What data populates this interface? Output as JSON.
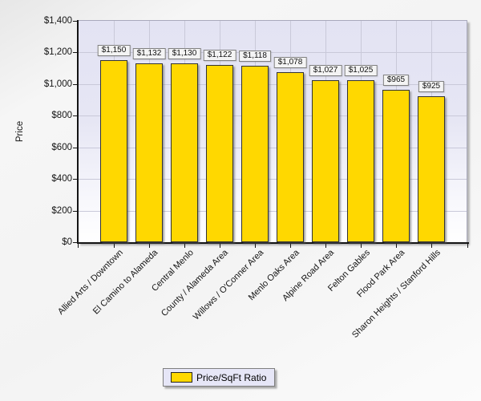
{
  "chart_data": {
    "type": "bar",
    "title": "",
    "xlabel": "",
    "ylabel": "Price",
    "categories": [
      "Allied Arts / Downtown",
      "El Camino to Alameda",
      "Central Menlo",
      "County / Alameda Area",
      "Willows / O'Conner Area",
      "Menlo Oaks Area",
      "Alpine Road Area",
      "Felton Gables",
      "Flood Park Area",
      "Sharon Heights / Stanford Hills"
    ],
    "series": [
      {
        "name": "Price/SqFt Ratio",
        "values": [
          1150,
          1132,
          1130,
          1122,
          1118,
          1078,
          1027,
          1025,
          965,
          925
        ]
      }
    ],
    "value_labels": [
      "$1,150",
      "$1,132",
      "$1,130",
      "$1,122",
      "$1,118",
      "$1,078",
      "$1,027",
      "$1,025",
      "$965",
      "$925"
    ],
    "y_axis": {
      "min": 0,
      "max": 1400,
      "tick_step": 200,
      "tick_values": [
        0,
        200,
        400,
        600,
        800,
        1000,
        1200,
        1400
      ],
      "tick_labels": [
        "$0",
        "$200",
        "$400",
        "$600",
        "$800",
        "$1,000",
        "$1,200",
        "$1,400"
      ]
    },
    "grid": true,
    "legend": {
      "position": "bottom",
      "entries": [
        "Price/SqFt Ratio"
      ]
    },
    "colors": {
      "bar_fill": "#ffd800",
      "bar_border": "#333333",
      "plot_bg_top": "#e3e3f3",
      "plot_bg_bottom": "#ffffff",
      "gridline": "#c9c9d9",
      "axis": "#141414",
      "label_box_bg": "#f4f4f4",
      "label_box_border": "#7f7f7f",
      "legend_bg": "#e6e6f7"
    }
  }
}
